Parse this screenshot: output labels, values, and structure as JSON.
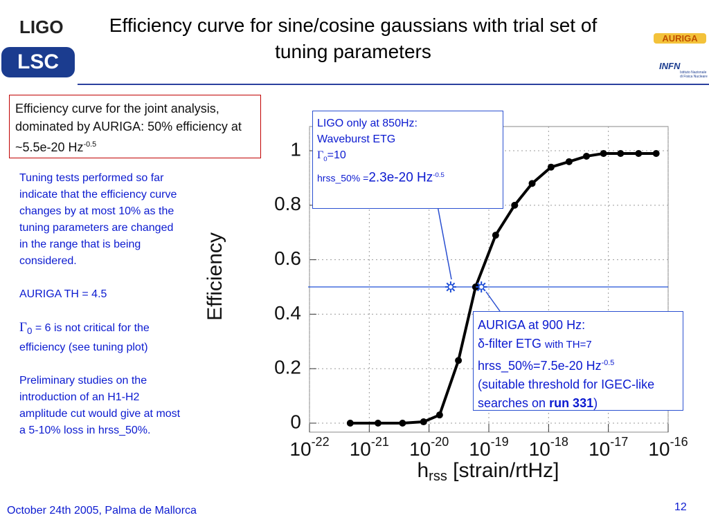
{
  "header": {
    "title": "Efficiency curve for sine/cosine gaussians with trial set of tuning parameters"
  },
  "logos": {
    "ligo": "LIGO",
    "lsc": "LSC",
    "auriga": "AURIGA",
    "infn": "INFN",
    "infn_sub": "Istituto Nazionale di Fisica Nucleare"
  },
  "summary_box": {
    "text": "Efficiency curve for the joint analysis, dominated by AURIGA: 50% efficiency at ~5.5e-20 Hz",
    "exp": "-0.5"
  },
  "notes": {
    "p1": "Tuning tests performed so far indicate that the efficiency curve changes by at most 10% as the tuning parameters are changed in the range that is being considered.",
    "p2": "AURIGA TH = 4.5",
    "p3_gamma": "Γ",
    "p3_sub": "0",
    "p3_text": " = 6 is not critical for the efficiency (see tuning plot)",
    "p4": "Preliminary studies on the introduction of an H1-H2 amplitude cut would give at most a 5-10% loss in hrss_50%."
  },
  "ligo_box": {
    "line1": "LIGO only at 850Hz:",
    "line2": "Waveburst ETG",
    "gamma": "Γ",
    "gamma_sub": "0",
    "gamma_val": "=10",
    "hrss": "hrss_50% =",
    "hrss_val": "2.3e-20 Hz",
    "hrss_exp": "-0.5"
  },
  "auriga_box": {
    "line1": "AURIGA at 900 Hz:",
    "line2a": "δ-filter ETG ",
    "line2b": "with TH=7",
    "line3": "hrss_50%=7.5e-20 Hz",
    "line3_exp": "-0.5",
    "line4": "(suitable threshold for IGEC-like searches on ",
    "line4_bold": "run 331",
    "line4_end": ")"
  },
  "footer": {
    "date": "October 24th 2005, Palma de Mallorca",
    "page": "12"
  },
  "chart_data": {
    "type": "line",
    "x_label": "h",
    "x_label_sub": "rss",
    "x_label_rest": " [strain/rtHz]",
    "y_label": "Efficiency",
    "log_x": true,
    "grid": true,
    "color": "#000000",
    "x": [
      4.8e-22,
      1.4e-21,
      3.6e-21,
      8.1e-21,
      1.5e-20,
      3.1e-20,
      6e-20,
      1.3e-19,
      2.7e-19,
      5.3e-19,
      1.1e-18,
      2.2e-18,
      4.3e-18,
      8.3e-18,
      1.6e-17,
      3.2e-17,
      6.3e-17
    ],
    "values": [
      0,
      0,
      0,
      0.005,
      0.03,
      0.23,
      0.5,
      0.69,
      0.8,
      0.88,
      0.94,
      0.96,
      0.98,
      0.99,
      0.99,
      0.99,
      0.99
    ],
    "xlim": [
      1e-22,
      1e-16
    ],
    "xticks": [
      {
        "value": 1e-22,
        "label": "10",
        "exponent": "-22"
      },
      {
        "value": 1e-21,
        "label": "10",
        "exponent": "-21"
      },
      {
        "value": 1e-20,
        "label": "10",
        "exponent": "-20"
      },
      {
        "value": 1e-19,
        "label": "10",
        "exponent": "-19"
      },
      {
        "value": 1e-18,
        "label": "10",
        "exponent": "-18"
      },
      {
        "value": 1e-17,
        "label": "10",
        "exponent": "-17"
      },
      {
        "value": 1e-16,
        "label": "10",
        "exponent": "-16"
      }
    ],
    "ylim": [
      -0.033,
      1.089
    ],
    "yticks": [
      0,
      0.2,
      0.4,
      0.6,
      0.8,
      1
    ],
    "hline": {
      "value": 0.5,
      "color": "#1f4fd6"
    },
    "markers": [
      {
        "x": 2.3e-20,
        "y": 0.5
      },
      {
        "x": 7.5e-20,
        "y": 0.5
      }
    ]
  }
}
